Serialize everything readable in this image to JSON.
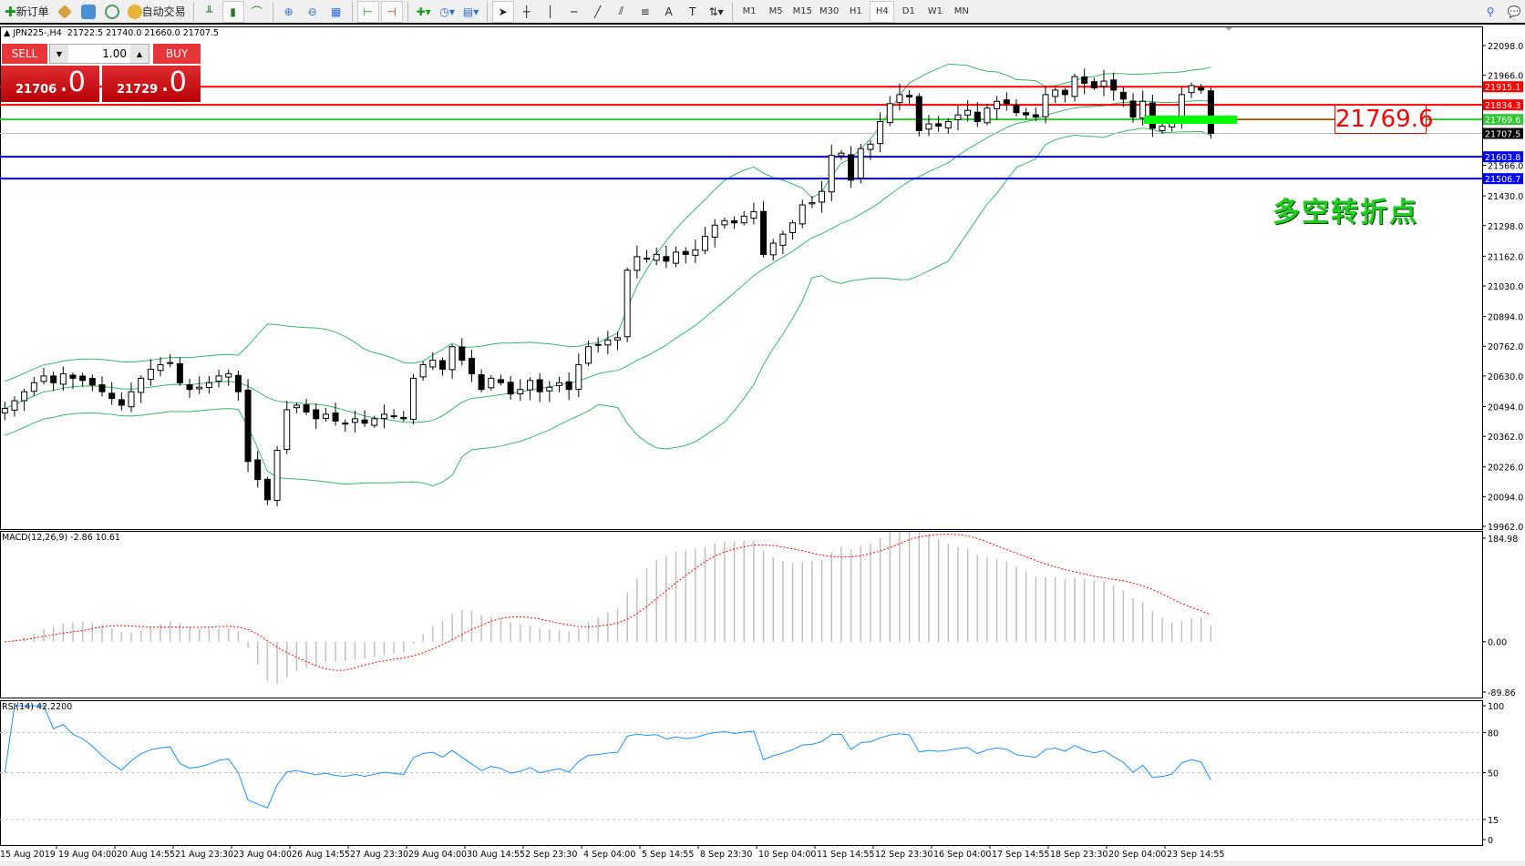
{
  "toolbar": {
    "new_order": "新订单",
    "auto_trading": "自动交易",
    "timeframes": [
      "M1",
      "M5",
      "M15",
      "M30",
      "H1",
      "H4",
      "D1",
      "W1",
      "MN"
    ],
    "active_timeframe": "H4",
    "icons": [
      "new-order-icon",
      "metaeditor-icon",
      "navigator-icon",
      "signal-icon",
      "auto-trading-icon",
      "bar-chart-icon",
      "candlestick-icon",
      "line-chart-icon",
      "zoom-in-icon",
      "zoom-out-icon",
      "tile-windows-icon",
      "chart-shift-icon",
      "autoscroll-icon",
      "add-indicator-icon",
      "periods-icon",
      "templates-icon",
      "cursor-icon",
      "crosshair-icon",
      "vertical-line-icon",
      "horizontal-line-icon",
      "trendline-icon",
      "equidistant-channel-icon",
      "fibonacci-icon",
      "text-icon",
      "text-label-icon",
      "arrows-icon",
      "search-icon",
      "chat-icon"
    ]
  },
  "header": {
    "symbol": "JPN225-,H4",
    "ohlc": "21722.5 21740.0 21660.0 21707.5"
  },
  "trade_panel": {
    "sell_label": "SELL",
    "buy_label": "BUY",
    "lots": "1.00",
    "sell_price_main": "21706",
    "sell_price_big": ".0",
    "buy_price_main": "21729",
    "buy_price_big": ".0",
    "color": "#d8161c"
  },
  "annotations": {
    "level_label": "21769.6",
    "text": "多空转折点",
    "text_color": "#1ed01e"
  },
  "chart_data": {
    "type": "candlestick",
    "symbol": "JPN225-",
    "timeframe": "H4",
    "ylim": [
      19962.0,
      22098.0
    ],
    "price_ticks": [
      "22098.0",
      "21966.0",
      "21566.0",
      "21430.0",
      "21298.0",
      "21162.0",
      "21030.0",
      "20894.0",
      "20762.0",
      "20630.0",
      "20494.0",
      "20362.0",
      "20226.0",
      "20094.0",
      "19962.0"
    ],
    "price_tick_values": [
      22098,
      21966,
      21566,
      21430,
      21298,
      21162,
      21030,
      20894,
      20762,
      20630,
      20494,
      20362,
      20226,
      20094,
      19962
    ],
    "levels": [
      {
        "price": 21915.1,
        "label": "21915.1",
        "color": "#ff0000"
      },
      {
        "price": 21834.3,
        "label": "21834.3",
        "color": "#ff0000"
      },
      {
        "price": 21769.6,
        "label": "21769.6",
        "color": "#32c832"
      },
      {
        "price": 21707.5,
        "label": "21707.5",
        "color": "#000000",
        "line": "#c0c0c0"
      },
      {
        "price": 21603.8,
        "label": "21603.8",
        "color": "#0000ff"
      },
      {
        "price": 21506.7,
        "label": "21506.7",
        "color": "#0000ff"
      }
    ],
    "closes": [
      20486,
      20520,
      20560,
      20600,
      20630,
      20600,
      20640,
      20620,
      20610,
      20590,
      20560,
      20530,
      20500,
      20560,
      20620,
      20660,
      20680,
      20690,
      20600,
      20570,
      20580,
      20600,
      20630,
      20640,
      20560,
      20250,
      20170,
      20080,
      20300,
      20480,
      20500,
      20470,
      20440,
      20460,
      20430,
      20420,
      20440,
      20420,
      20440,
      20460,
      20450,
      20440,
      20620,
      20680,
      20700,
      20660,
      20760,
      20700,
      20640,
      20570,
      20620,
      20600,
      20550,
      20570,
      20610,
      20560,
      20580,
      20600,
      20570,
      20680,
      20760,
      20770,
      20790,
      20800,
      21100,
      21160,
      21150,
      21170,
      21140,
      21180,
      21170,
      21190,
      21250,
      21300,
      21320,
      21310,
      21340,
      21360,
      21170,
      21220,
      21260,
      21310,
      21390,
      21400,
      21450,
      21610,
      21620,
      21500,
      21640,
      21660,
      21760,
      21840,
      21880,
      21870,
      21720,
      21750,
      21740,
      21760,
      21790,
      21810,
      21760,
      21820,
      21850,
      21840,
      21800,
      21790,
      21780,
      21880,
      21900,
      21880,
      21960,
      21930,
      21910,
      21940,
      21900,
      21860,
      21780,
      21850,
      21730,
      21740,
      21760,
      21880,
      21920,
      21900,
      21707.5
    ],
    "bands": {
      "period": 20,
      "deviation": 2,
      "color": "#3cb371"
    },
    "time_labels": [
      "15 Aug 2019",
      "19 Aug 04:00",
      "20 Aug 14:55",
      "21 Aug 23:30",
      "23 Aug 04:00",
      "26 Aug 14:55",
      "27 Aug 23:30",
      "29 Aug 04:00",
      "30 Aug 14:55",
      "2 Sep 23:30",
      "4 Sep 04:00",
      "5 Sep 14:55",
      "8 Sep 23:30",
      "10 Sep 04:00",
      "11 Sep 14:55",
      "12 Sep 23:30",
      "16 Sep 04:00",
      "17 Sep 14:55",
      "18 Sep 23:30",
      "20 Sep 04:00",
      "23 Sep 14:55"
    ],
    "macd": {
      "label": "MACD(12,26,9) -2.86 10.61",
      "ylim": [
        -89.86,
        184.98
      ],
      "ticks": [
        "184.98",
        "0.00",
        "-89.86"
      ],
      "hist_color": "#c0c0c0",
      "signal_color": "#ff0000"
    },
    "rsi": {
      "label": "RSI(14) 42.2200",
      "ylim": [
        0,
        100
      ],
      "ticks": [
        "100",
        "80",
        "50",
        "15",
        "0"
      ],
      "levels": [
        80,
        50,
        15
      ],
      "color": "#1e90ff"
    }
  }
}
